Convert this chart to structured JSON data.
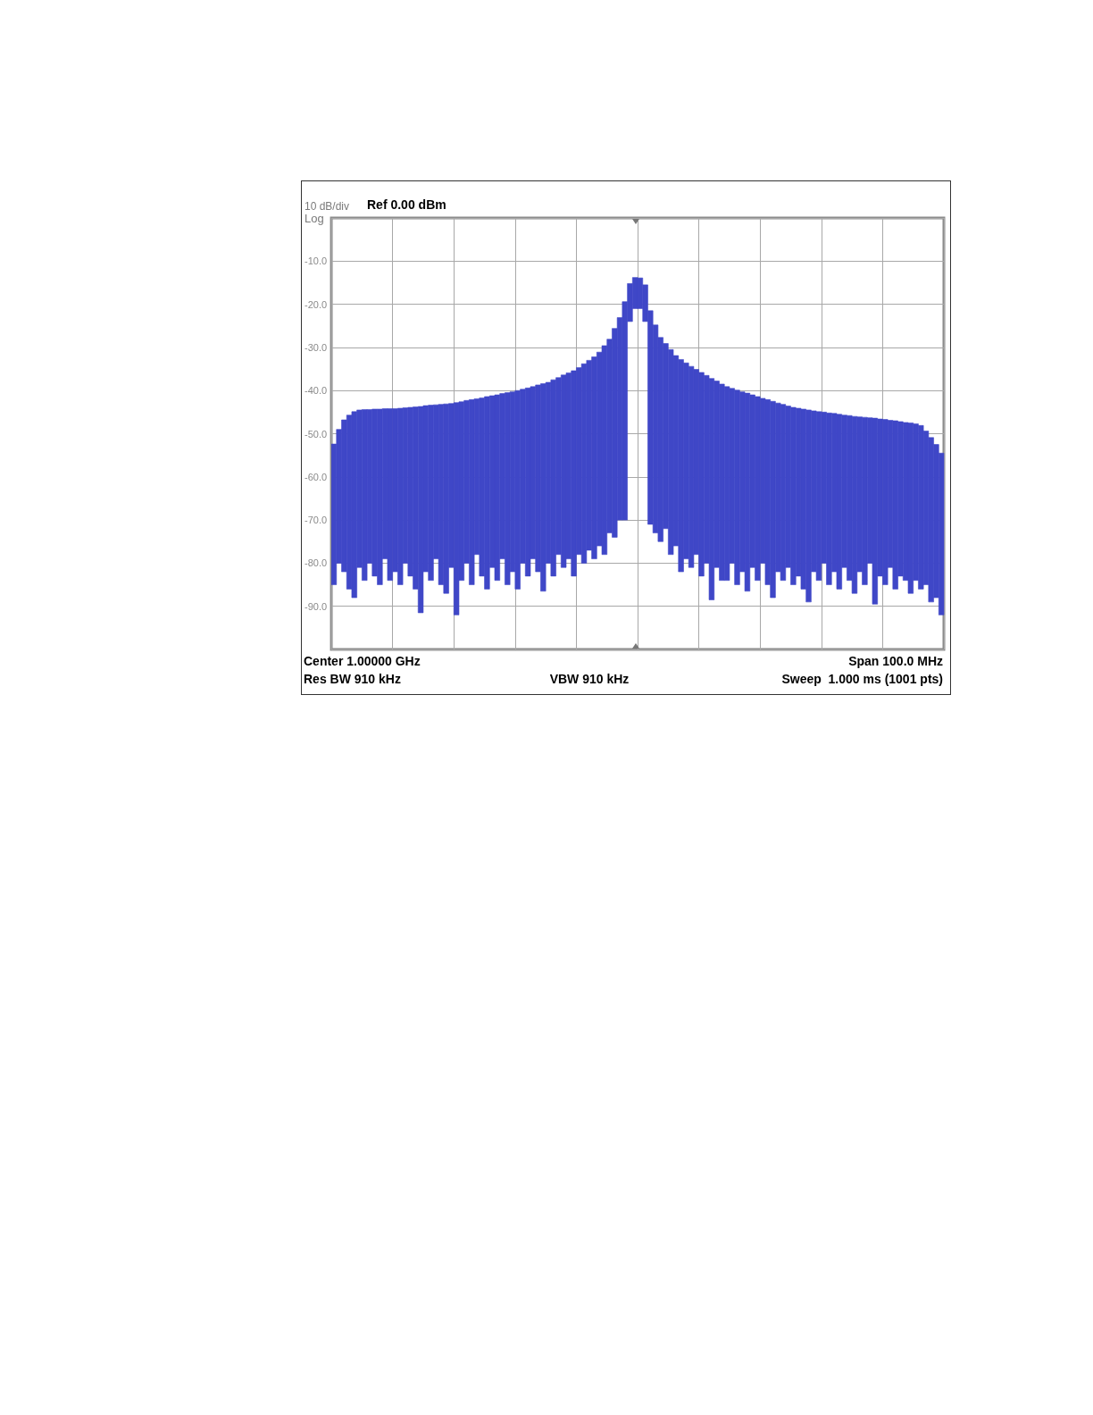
{
  "chart_data": {
    "type": "bar",
    "title": "Ref 0.00 dBm",
    "annotations": [
      "10 dB/div",
      "Log",
      "Center 1.00000 GHz",
      "Span 100.0 MHz",
      "Res BW 910 kHz",
      "VBW 910 kHz",
      "Sweep  1.000 ms (1001 pts)"
    ],
    "categories": [
      null,
      null,
      null,
      null,
      null,
      null,
      null,
      null,
      null,
      null,
      null,
      null,
      null,
      null,
      null,
      null,
      null,
      null,
      null,
      null,
      null,
      null,
      null,
      null,
      null,
      null,
      null,
      null,
      null,
      null,
      null,
      null,
      null,
      null,
      null,
      null,
      null,
      null,
      null,
      null,
      null,
      null,
      null,
      null,
      null,
      null,
      null,
      null,
      null,
      null,
      null,
      null,
      null,
      null,
      null,
      null,
      null,
      null,
      null,
      null,
      null,
      null,
      null,
      null,
      null,
      null,
      null,
      null,
      null,
      null,
      null,
      null,
      null,
      null,
      null,
      null,
      null,
      null,
      null,
      null,
      null,
      null,
      null,
      null,
      null,
      null,
      null,
      null,
      null,
      null,
      null,
      null,
      null,
      null,
      null,
      null,
      null,
      null,
      null,
      null,
      null,
      null,
      null,
      null,
      null,
      null,
      null,
      null,
      null,
      null,
      null,
      null,
      null,
      null,
      null,
      null,
      null,
      null,
      null,
      null
    ],
    "values": [
      32.6,
      31.0,
      35.2,
      40.3,
      43.1,
      36.5,
      39.6,
      35.6,
      38.7,
      40.7,
      34.8,
      39.8,
      37.8,
      40.9,
      36.0,
      39.1,
      42.2,
      47.8,
      38.5,
      40.6,
      35.7,
      41.8,
      43.9,
      38.0,
      49.2,
      41.4,
      37.7,
      42.9,
      36.1,
      41.3,
      44.6,
      39.8,
      43.0,
      38.3,
      44.5,
      41.7,
      46.0,
      40.3,
      43.6,
      39.9,
      43.3,
      48.1,
      41.9,
      45.5,
      41.0,
      44.6,
      43.1,
      47.6,
      43.3,
      46.2,
      44.0,
      46.8,
      44.9,
      48.4,
      44.9,
      48.4,
      46.9,
      50.6,
      8.8,
      7.2,
      7.1,
      8.5,
      49.5,
      48.2,
      47.3,
      42.9,
      47.5,
      44.1,
      49.2,
      45.4,
      46.6,
      42.9,
      47.2,
      43.5,
      51.3,
      43.2,
      45.5,
      44.9,
      40.5,
      45.1,
      41.7,
      45.9,
      40.0,
      42.6,
      38.2,
      42.9,
      45.5,
      39.1,
      40.8,
      37.4,
      41.1,
      38.9,
      41.7,
      44.5,
      37.3,
      39.1,
      35.0,
      39.8,
      36.7,
      40.5,
      35.3,
      38.2,
      41.0,
      35.9,
      38.8,
      33.7,
      43.1,
      36.4,
      38.3,
      34.1,
      39.0,
      35.8,
      36.6,
      39.5,
      36.3,
      37.9,
      35.6,
      38.1,
      35.5,
      37.5
    ],
    "base": [
      -85,
      -80,
      -82,
      -86,
      -88,
      -81,
      -84,
      -80,
      -83,
      -85,
      -79,
      -84,
      -82,
      -85,
      -80,
      -83,
      -86,
      -91.5,
      -82,
      -84,
      -79,
      -85,
      -87,
      -81,
      -92,
      -84,
      -80,
      -85,
      -78,
      -83,
      -86,
      -81,
      -84,
      -79,
      -85,
      -82,
      -86,
      -80,
      -83,
      -79,
      -82,
      -86.5,
      -80,
      -83,
      -78,
      -81,
      -79,
      -83,
      -78,
      -80,
      -77,
      -79,
      -76,
      -78,
      -73,
      -74,
      -70,
      -70,
      -24,
      -21,
      -21,
      -24,
      -71,
      -73,
      -75,
      -72,
      -78,
      -76,
      -82,
      -79,
      -81,
      -78,
      -83,
      -80,
      -88.5,
      -81,
      -84,
      -84,
      -80,
      -85,
      -82,
      -86.5,
      -81,
      -84,
      -80,
      -85,
      -88,
      -82,
      -84,
      -81,
      -85,
      -83,
      -86,
      -89,
      -82,
      -84,
      -80,
      -85,
      -82,
      -86,
      -81,
      -84,
      -87,
      -82,
      -85,
      -80,
      -89.5,
      -83,
      -85,
      -81,
      -86,
      -83,
      -84,
      -87,
      -84,
      -86,
      -85,
      -89,
      -88,
      -92
    ],
    "color": "#3f47c7",
    "ylim": [
      -100,
      0
    ],
    "yticks": [
      {
        "value": -100,
        "label": null
      },
      {
        "value": -90,
        "label": "-90.0"
      },
      {
        "value": -80,
        "label": "-80.0"
      },
      {
        "value": -70,
        "label": "-70.0"
      },
      {
        "value": -60,
        "label": "-60.0"
      },
      {
        "value": -50,
        "label": "-50.0"
      },
      {
        "value": -40,
        "label": "-40.0"
      },
      {
        "value": -30,
        "label": "-30.0"
      },
      {
        "value": -20,
        "label": "-20.0"
      },
      {
        "value": -10,
        "label": "-10.0"
      },
      {
        "value": 0,
        "label": null
      }
    ],
    "grid": true,
    "tick_labels": "y"
  }
}
